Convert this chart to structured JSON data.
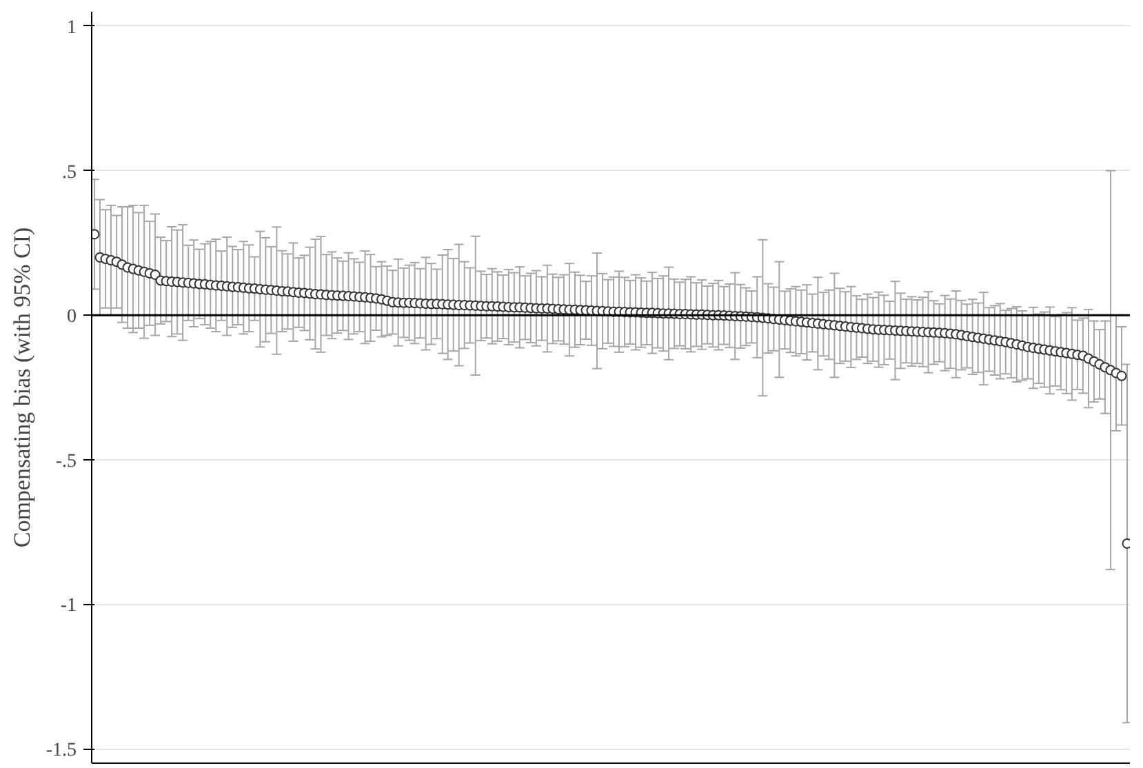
{
  "chart_data": {
    "type": "scatter",
    "ylabel": "Compensating bias (with 95% CI)",
    "categories": [
      null,
      null,
      null,
      null,
      null,
      null,
      null,
      null,
      null,
      null,
      null,
      null,
      null,
      null,
      null,
      null,
      null,
      null,
      null,
      null,
      null,
      null,
      null,
      null,
      null,
      null,
      null,
      null,
      null,
      null,
      null,
      null,
      null,
      null,
      null,
      null,
      null,
      null,
      null,
      null,
      null,
      null,
      null,
      null,
      null,
      null,
      null,
      null,
      null,
      null,
      null,
      null,
      null,
      null,
      null,
      null,
      null,
      null,
      null,
      null,
      null,
      null,
      null,
      null,
      null,
      null,
      null,
      null,
      null,
      null,
      null,
      null,
      null,
      null,
      null,
      null,
      null,
      null,
      null,
      null,
      null,
      null,
      null,
      null,
      null,
      null,
      null,
      null,
      null,
      null,
      null,
      null,
      null,
      null,
      null,
      null,
      null,
      null,
      null,
      null,
      null,
      null,
      null,
      null,
      null,
      null,
      null,
      null,
      null,
      null,
      null,
      null,
      null,
      null,
      null,
      null,
      null,
      null,
      null,
      null,
      null,
      null,
      null,
      null,
      null,
      null,
      null,
      null,
      null,
      null,
      null,
      null,
      null,
      null,
      null,
      null,
      null,
      null,
      null,
      null,
      null,
      null,
      null,
      null,
      null,
      null,
      null,
      null,
      null,
      null,
      null,
      null,
      null,
      null,
      null,
      null,
      null,
      null,
      null,
      null,
      null,
      null,
      null,
      null,
      null,
      null,
      null,
      null,
      null,
      null,
      null,
      null,
      null,
      null,
      null,
      null,
      null,
      null,
      null,
      null,
      null,
      null,
      null,
      null,
      null,
      null,
      null,
      null
    ],
    "values": [
      0.28,
      0.2,
      0.195,
      0.19,
      0.185,
      0.175,
      0.165,
      0.16,
      0.155,
      0.15,
      0.145,
      0.14,
      0.12,
      0.118,
      0.116,
      0.115,
      0.113,
      0.112,
      0.11,
      0.108,
      0.107,
      0.105,
      0.103,
      0.102,
      0.1,
      0.098,
      0.097,
      0.095,
      0.093,
      0.092,
      0.09,
      0.088,
      0.087,
      0.085,
      0.083,
      0.082,
      0.08,
      0.078,
      0.077,
      0.075,
      0.073,
      0.072,
      0.07,
      0.069,
      0.068,
      0.067,
      0.066,
      0.065,
      0.063,
      0.062,
      0.06,
      0.058,
      0.055,
      0.05,
      0.045,
      0.044,
      0.043,
      0.043,
      0.042,
      0.041,
      0.04,
      0.039,
      0.039,
      0.038,
      0.037,
      0.036,
      0.035,
      0.035,
      0.034,
      0.033,
      0.032,
      0.031,
      0.031,
      0.03,
      0.029,
      0.028,
      0.027,
      0.027,
      0.026,
      0.025,
      0.024,
      0.023,
      0.023,
      0.022,
      0.021,
      0.02,
      0.019,
      0.019,
      0.018,
      0.017,
      0.016,
      0.015,
      0.014,
      0.013,
      0.012,
      0.012,
      0.011,
      0.01,
      0.01,
      0.009,
      0.008,
      0.008,
      0.007,
      0.006,
      0.006,
      0.005,
      0.004,
      0.004,
      0.003,
      0.002,
      0.002,
      0.001,
      0,
      0,
      -0.001,
      -0.002,
      -0.003,
      -0.004,
      -0.005,
      -0.006,
      -0.007,
      -0.009,
      -0.011,
      -0.013,
      -0.015,
      -0.017,
      -0.019,
      -0.021,
      -0.023,
      -0.025,
      -0.027,
      -0.029,
      -0.031,
      -0.033,
      -0.035,
      -0.037,
      -0.039,
      -0.041,
      -0.043,
      -0.045,
      -0.047,
      -0.049,
      -0.05,
      -0.051,
      -0.052,
      -0.053,
      -0.054,
      -0.055,
      -0.056,
      -0.057,
      -0.058,
      -0.059,
      -0.06,
      -0.061,
      -0.062,
      -0.064,
      -0.066,
      -0.069,
      -0.072,
      -0.075,
      -0.078,
      -0.081,
      -0.084,
      -0.087,
      -0.09,
      -0.093,
      -0.097,
      -0.101,
      -0.105,
      -0.11,
      -0.113,
      -0.116,
      -0.119,
      -0.122,
      -0.125,
      -0.128,
      -0.131,
      -0.134,
      -0.137,
      -0.14,
      -0.15,
      -0.16,
      -0.17,
      -0.18,
      -0.19,
      -0.2,
      -0.21,
      -0.79
    ],
    "errors": [
      0.19,
      0.2,
      0.17,
      0.19,
      0.16,
      0.2,
      0.21,
      0.22,
      0.2,
      0.23,
      0.18,
      0.21,
      0.15,
      0.14,
      0.19,
      0.18,
      0.2,
      0.13,
      0.15,
      0.12,
      0.14,
      0.15,
      0.16,
      0.12,
      0.17,
      0.14,
      0.13,
      0.16,
      0.15,
      0.11,
      0.2,
      0.18,
      0.15,
      0.22,
      0.14,
      0.13,
      0.17,
      0.12,
      0.13,
      0.16,
      0.19,
      0.2,
      0.14,
      0.15,
      0.13,
      0.12,
      0.15,
      0.13,
      0.12,
      0.16,
      0.15,
      0.11,
      0.13,
      0.12,
      0.11,
      0.15,
      0.12,
      0.13,
      0.14,
      0.12,
      0.16,
      0.14,
      0.12,
      0.17,
      0.19,
      0.16,
      0.21,
      0.15,
      0.13,
      0.24,
      0.12,
      0.11,
      0.13,
      0.12,
      0.11,
      0.13,
      0.12,
      0.14,
      0.11,
      0.12,
      0.13,
      0.11,
      0.15,
      0.12,
      0.11,
      0.12,
      0.16,
      0.13,
      0.12,
      0.1,
      0.12,
      0.2,
      0.13,
      0.11,
      0.12,
      0.14,
      0.12,
      0.11,
      0.13,
      0.12,
      0.11,
      0.14,
      0.12,
      0.13,
      0.16,
      0.12,
      0.11,
      0.12,
      0.13,
      0.11,
      0.12,
      0.1,
      0.11,
      0.12,
      0.1,
      0.11,
      0.15,
      0.11,
      0.1,
      0.09,
      0.14,
      0.27,
      0.12,
      0.11,
      0.2,
      0.1,
      0.11,
      0.12,
      0.11,
      0.13,
      0.1,
      0.16,
      0.11,
      0.12,
      0.18,
      0.13,
      0.12,
      0.14,
      0.11,
      0.1,
      0.12,
      0.11,
      0.13,
      0.12,
      0.1,
      0.17,
      0.13,
      0.11,
      0.12,
      0.11,
      0.12,
      0.14,
      0.11,
      0.1,
      0.13,
      0.12,
      0.15,
      0.12,
      0.11,
      0.13,
      0.12,
      0.16,
      0.11,
      0.12,
      0.13,
      0.11,
      0.12,
      0.13,
      0.12,
      0.11,
      0.14,
      0.12,
      0.13,
      0.15,
      0.12,
      0.13,
      0.14,
      0.16,
      0.12,
      0.13,
      0.17,
      0.14,
      0.12,
      0.16,
      0.69,
      0.2,
      0.17,
      0.62
    ],
    "color": "#333333",
    "marker": "circle",
    "ylim": [
      -1.55,
      1.05
    ],
    "yticks": [
      1,
      {
        "value": 0.5,
        "label": ".5"
      },
      0,
      {
        "value": -0.5,
        "label": "-.5"
      },
      -1,
      {
        "value": -1.5,
        "label": "-1.5"
      }
    ],
    "grid": "y",
    "ref_lines": [
      {
        "axis": "y",
        "value": 0,
        "color": "#000000"
      }
    ],
    "tick_labels": "y"
  }
}
